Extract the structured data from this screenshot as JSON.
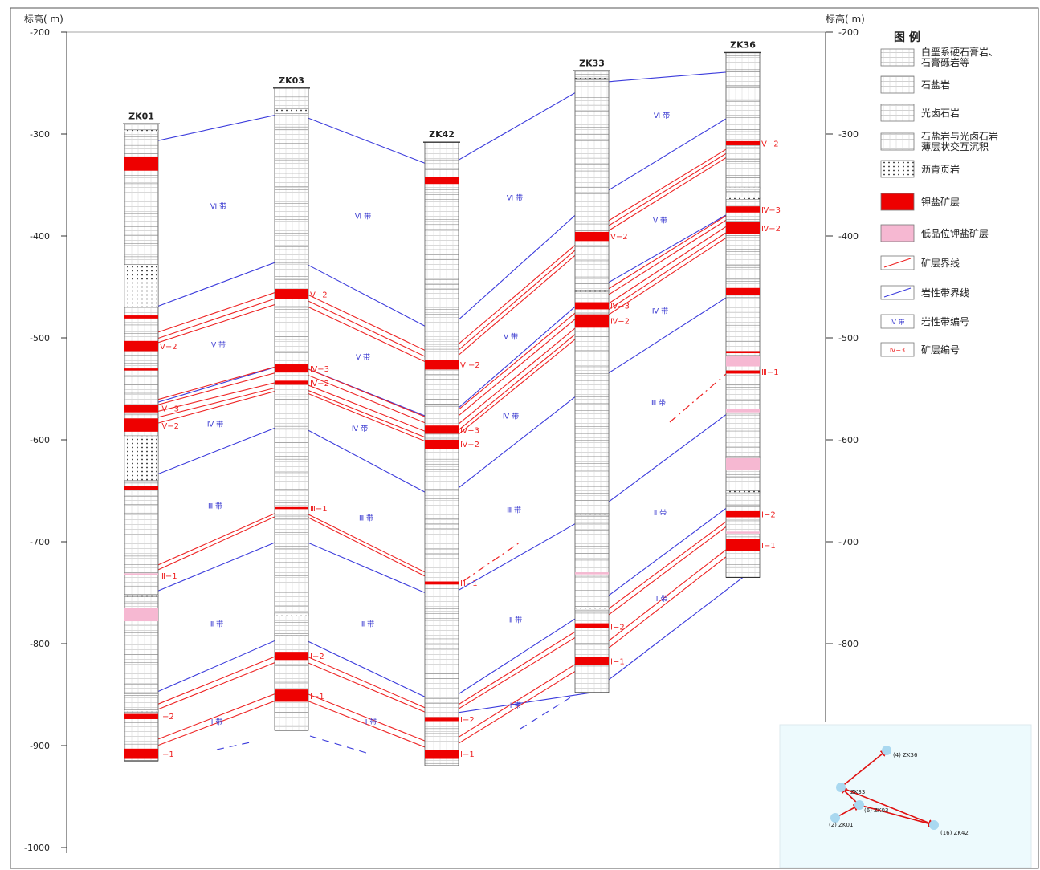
{
  "axis": {
    "label_left": "标高( m)",
    "label_right": "标高( m)",
    "ticks": [
      -200,
      -300,
      -400,
      -500,
      -600,
      -700,
      -800,
      -900,
      -1000
    ],
    "right_ticks": [
      -200,
      -300,
      -400,
      -500,
      -600,
      -700,
      -800
    ],
    "range": [
      -1000,
      -200
    ]
  },
  "wells": [
    {
      "id": "zk01",
      "name": "ZK01",
      "top": -290,
      "bottom": -915,
      "ore": [
        [
          -322,
          -336
        ],
        [
          -478,
          -481
        ],
        [
          -503,
          -513
        ],
        [
          -530,
          -532
        ],
        [
          -566,
          -573
        ],
        [
          -579,
          -592
        ],
        [
          -645,
          -649
        ],
        [
          -869,
          -874
        ],
        [
          -903,
          -913
        ]
      ],
      "low": [
        [
          -731,
          -733
        ],
        [
          -765,
          -778
        ]
      ],
      "shale": [
        [
          -296,
          -298
        ],
        [
          -428,
          -470
        ],
        [
          -596,
          -640
        ],
        [
          -752,
          -754
        ],
        [
          -849,
          -851
        ],
        [
          -865,
          -867
        ]
      ],
      "labels": [
        {
          "text": "Ⅴ−2",
          "y": -508
        },
        {
          "text": "Ⅳ−3",
          "y": -569
        },
        {
          "text": "Ⅳ−2",
          "y": -586
        },
        {
          "text": "Ⅲ−1",
          "y": -733
        },
        {
          "text": "Ⅰ−2",
          "y": -871
        },
        {
          "text": "Ⅰ−1",
          "y": -908
        }
      ]
    },
    {
      "id": "zk03",
      "name": "ZK03",
      "top": -255,
      "bottom": -885,
      "ore": [
        [
          -452,
          -462
        ],
        [
          -526,
          -534
        ],
        [
          -542,
          -546
        ],
        [
          -666,
          -668
        ],
        [
          -808,
          -816
        ],
        [
          -845,
          -857
        ]
      ],
      "low": [],
      "shale": [
        [
          -275,
          -280
        ],
        [
          -770,
          -773
        ],
        [
          -790,
          -792
        ]
      ],
      "labels": [
        {
          "text": "Ⅴ−2",
          "y": -457
        },
        {
          "text": "Ⅳ−3",
          "y": -530
        },
        {
          "text": "Ⅳ−2",
          "y": -544
        },
        {
          "text": "Ⅲ−1",
          "y": -667
        },
        {
          "text": "Ⅰ−2",
          "y": -812
        },
        {
          "text": "Ⅰ−1",
          "y": -851
        }
      ]
    },
    {
      "id": "zk42",
      "name": "ZK42",
      "top": -308,
      "bottom": -920,
      "ore": [
        [
          -342,
          -349
        ],
        [
          -522,
          -531
        ],
        [
          -586,
          -594
        ],
        [
          -600,
          -609
        ],
        [
          -739,
          -742
        ],
        [
          -872,
          -876
        ],
        [
          -904,
          -913
        ]
      ],
      "low": [],
      "shale": [
        [
          -565,
          -567
        ]
      ],
      "labels": [
        {
          "text": "Ⅴ −2",
          "y": -526
        },
        {
          "text": "Ⅳ−3",
          "y": -590
        },
        {
          "text": "Ⅳ−2",
          "y": -604
        },
        {
          "text": "Ⅲ−1",
          "y": -740
        },
        {
          "text": "Ⅰ−2",
          "y": -874
        },
        {
          "text": "Ⅰ−1",
          "y": -908
        }
      ]
    },
    {
      "id": "zk33",
      "name": "ZK33",
      "top": -238,
      "bottom": -848,
      "ore": [
        [
          -396,
          -405
        ],
        [
          -465,
          -472
        ],
        [
          -477,
          -490
        ],
        [
          -780,
          -785
        ],
        [
          -813,
          -821
        ]
      ],
      "low": [
        [
          -730,
          -732
        ]
      ],
      "shale": [
        [
          -245,
          -247
        ],
        [
          -453,
          -455
        ],
        [
          -672,
          -674
        ],
        [
          -765,
          -767
        ]
      ],
      "labels": [
        {
          "text": "Ⅴ−2",
          "y": -400
        },
        {
          "text": "Ⅳ−3",
          "y": -468
        },
        {
          "text": "Ⅳ−2",
          "y": -483
        },
        {
          "text": "Ⅰ−2",
          "y": -783
        },
        {
          "text": "Ⅰ−1",
          "y": -817
        }
      ]
    },
    {
      "id": "zk36",
      "name": "ZK36",
      "top": -220,
      "bottom": -735,
      "ore": [
        [
          -307,
          -311
        ],
        [
          -371,
          -377
        ],
        [
          -386,
          -398
        ],
        [
          -451,
          -458
        ],
        [
          -513,
          -515
        ],
        [
          -532,
          -535
        ],
        [
          -670,
          -676
        ],
        [
          -697,
          -709
        ]
      ],
      "low": [
        [
          -518,
          -528
        ],
        [
          -570,
          -573
        ],
        [
          -618,
          -630
        ],
        [
          -690,
          -692
        ]
      ],
      "shale": [
        [
          -352,
          -354
        ],
        [
          -362,
          -364
        ],
        [
          -616,
          -618
        ],
        [
          -650,
          -652
        ]
      ],
      "labels": [
        {
          "text": "Ⅴ−2",
          "y": -309
        },
        {
          "text": "Ⅳ−3",
          "y": -374
        },
        {
          "text": "Ⅳ−2",
          "y": -392
        },
        {
          "text": "Ⅲ−1",
          "y": -533
        },
        {
          "text": "Ⅰ−2",
          "y": -673
        },
        {
          "text": "Ⅰ−1",
          "y": -703
        }
      ]
    }
  ],
  "blue_lines": [
    [
      -310,
      -278,
      -335,
      -250,
      -238
    ],
    [
      -475,
      -420,
      -497,
      -365,
      -275
    ],
    [
      -568,
      -524,
      -583,
      -455,
      -370
    ],
    [
      -640,
      -582,
      -660,
      -545,
      -450
    ],
    [
      -755,
      -694,
      -757,
      -673,
      -563
    ],
    [
      -854,
      -790,
      -860,
      -765,
      -655
    ],
    [
      null,
      null,
      -870,
      -848,
      -735
    ]
  ],
  "red_lines": [
    [
      -500,
      -450,
      -520,
      -395,
      -305
    ],
    [
      -506,
      -456,
      -526,
      -400,
      -309
    ],
    [
      -510,
      -462,
      -531,
      -405,
      -313
    ],
    [
      -565,
      -524,
      -584,
      -462,
      -370
    ],
    [
      -570,
      -530,
      -590,
      -468,
      -374
    ],
    [
      -576,
      -540,
      -598,
      -477,
      -380
    ],
    [
      -582,
      -545,
      -604,
      -483,
      -386
    ],
    [
      -588,
      -548,
      -608,
      -488,
      -391
    ],
    [
      -730,
      -665,
      -738
    ],
    [
      -735,
      -668,
      -742
    ],
    [
      -866,
      -806,
      -870,
      -778,
      -668
    ],
    [
      -871,
      -812,
      -874,
      -784,
      -673
    ],
    [
      -900,
      -843,
      -902,
      -810,
      -695
    ],
    [
      -906,
      -850,
      -908,
      -817,
      -702
    ]
  ],
  "zone_labels": [
    {
      "text": "Ⅵ 带",
      "x": 272,
      "y": -370
    },
    {
      "text": "Ⅵ 带",
      "x": 452,
      "y": -380
    },
    {
      "text": "Ⅵ 带",
      "x": 641,
      "y": -362
    },
    {
      "text": "Ⅵ 带",
      "x": 824,
      "y": -281
    },
    {
      "text": "Ⅴ 带",
      "x": 272,
      "y": -506
    },
    {
      "text": "Ⅴ 带",
      "x": 452,
      "y": -518
    },
    {
      "text": "Ⅴ 带",
      "x": 636,
      "y": -498
    },
    {
      "text": "Ⅴ 带",
      "x": 822,
      "y": -384
    },
    {
      "text": "Ⅳ 带",
      "x": 268,
      "y": -584
    },
    {
      "text": "Ⅳ 带",
      "x": 448,
      "y": -588
    },
    {
      "text": "Ⅳ 带",
      "x": 636,
      "y": -576
    },
    {
      "text": "Ⅳ 带",
      "x": 822,
      "y": -473
    },
    {
      "text": "Ⅲ 带",
      "x": 268,
      "y": -664
    },
    {
      "text": "Ⅲ 带",
      "x": 456,
      "y": -676
    },
    {
      "text": "Ⅲ 带",
      "x": 640,
      "y": -668
    },
    {
      "text": "Ⅲ 带",
      "x": 820,
      "y": -563
    },
    {
      "text": "Ⅱ 带",
      "x": 270,
      "y": -780
    },
    {
      "text": "Ⅱ 带",
      "x": 458,
      "y": -780
    },
    {
      "text": "Ⅱ 带",
      "x": 642,
      "y": -776
    },
    {
      "text": "Ⅱ 带",
      "x": 822,
      "y": -671
    },
    {
      "text": "Ⅰ 带",
      "x": 270,
      "y": -876
    },
    {
      "text": "Ⅰ 带",
      "x": 462,
      "y": -876
    },
    {
      "text": "Ⅰ 带",
      "x": 642,
      "y": -860
    },
    {
      "text": "Ⅰ 带",
      "x": 824,
      "y": -755
    }
  ],
  "legend": {
    "title": "图  例",
    "items": [
      {
        "type": "gypsum",
        "lines": [
          "白垩系硬石膏岩、",
          "石膏砾岩等"
        ]
      },
      {
        "type": "halite",
        "lines": [
          "石盐岩"
        ]
      },
      {
        "type": "carnallite",
        "lines": [
          "光卤石岩"
        ]
      },
      {
        "type": "interbed",
        "lines": [
          "石盐岩与光卤石岩",
          "薄层状交互沉积"
        ]
      },
      {
        "type": "shale",
        "lines": [
          "沥青页岩"
        ]
      },
      {
        "type": "ore",
        "lines": [
          "钾盐矿层"
        ]
      },
      {
        "type": "lowgrade",
        "lines": [
          "低品位钾盐矿层"
        ]
      },
      {
        "type": "redline",
        "lines": [
          "矿层界线"
        ]
      },
      {
        "type": "blueline",
        "lines": [
          "岩性带界线"
        ]
      },
      {
        "type": "zonebox",
        "box_text": "Ⅳ 带",
        "lines": [
          "岩性带编号"
        ]
      },
      {
        "type": "orebox",
        "box_text": "Ⅳ−3",
        "lines": [
          "矿层编号"
        ]
      }
    ]
  },
  "inset": {
    "points": [
      {
        "label": "(4) ZK36"
      },
      {
        "label": "ZK33"
      },
      {
        "label": "(6) ZK03"
      },
      {
        "label": "(2) ZK01"
      },
      {
        "label": "(16) ZK42"
      }
    ]
  },
  "colors": {
    "ore": "#ee0000",
    "lowgrade": "#f6b8d2",
    "blue": "#3b3bdc",
    "red": "#ee2222",
    "zone_text": "#3a3ad0",
    "inset_bg": "#edfafd"
  }
}
